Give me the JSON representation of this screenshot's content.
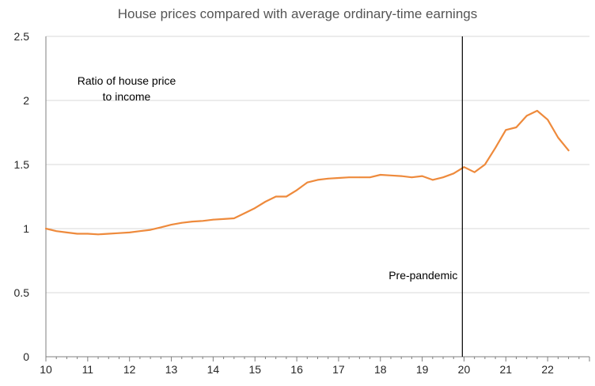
{
  "chart_data": {
    "type": "line",
    "title": "House prices compared with average ordinary-time earnings",
    "xlabel": "",
    "ylabel": "",
    "xlim": [
      10,
      23
    ],
    "ylim": [
      0,
      2.5
    ],
    "grid": true,
    "x_ticks": [
      10,
      11,
      12,
      13,
      14,
      15,
      16,
      17,
      18,
      19,
      20,
      21,
      22
    ],
    "x_tick_labels": [
      "10",
      "11",
      "12",
      "13",
      "14",
      "15",
      "16",
      "17",
      "18",
      "19",
      "20",
      "21",
      "22"
    ],
    "y_ticks": [
      0,
      0.5,
      1,
      1.5,
      2,
      2.5
    ],
    "y_tick_labels": [
      "0",
      "0.5",
      "1",
      "1.5",
      "2",
      "2.5"
    ],
    "annotations": {
      "series_label_line1": "Ratio of house price",
      "series_label_line2": "to income",
      "pre_pandemic_label": "Pre-pandemic",
      "pre_pandemic_x": 19.96
    },
    "colors": {
      "line": "#EE8A3C",
      "grid": "#D9D9D9",
      "axis": "#7F7F7F",
      "vline": "#000000",
      "text": "#262626"
    },
    "series": [
      {
        "name": "Ratio of house price to income",
        "x": [
          10.0,
          10.25,
          10.5,
          10.75,
          11.0,
          11.25,
          11.5,
          11.75,
          12.0,
          12.25,
          12.5,
          12.75,
          13.0,
          13.25,
          13.5,
          13.75,
          14.0,
          14.25,
          14.5,
          14.75,
          15.0,
          15.25,
          15.5,
          15.75,
          16.0,
          16.25,
          16.5,
          16.75,
          17.0,
          17.25,
          17.5,
          17.75,
          18.0,
          18.25,
          18.5,
          18.75,
          19.0,
          19.25,
          19.5,
          19.75,
          20.0,
          20.25,
          20.5,
          20.75,
          21.0,
          21.25,
          21.5,
          21.75,
          22.0,
          22.25,
          22.5
        ],
        "values": [
          1.0,
          0.98,
          0.97,
          0.96,
          0.96,
          0.955,
          0.96,
          0.965,
          0.97,
          0.98,
          0.99,
          1.01,
          1.03,
          1.045,
          1.055,
          1.06,
          1.07,
          1.075,
          1.08,
          1.12,
          1.16,
          1.21,
          1.25,
          1.25,
          1.3,
          1.36,
          1.38,
          1.39,
          1.395,
          1.4,
          1.4,
          1.4,
          1.42,
          1.415,
          1.41,
          1.4,
          1.41,
          1.38,
          1.4,
          1.43,
          1.48,
          1.44,
          1.5,
          1.63,
          1.77,
          1.79,
          1.88,
          1.92,
          1.85,
          1.71,
          1.61
        ]
      }
    ]
  }
}
